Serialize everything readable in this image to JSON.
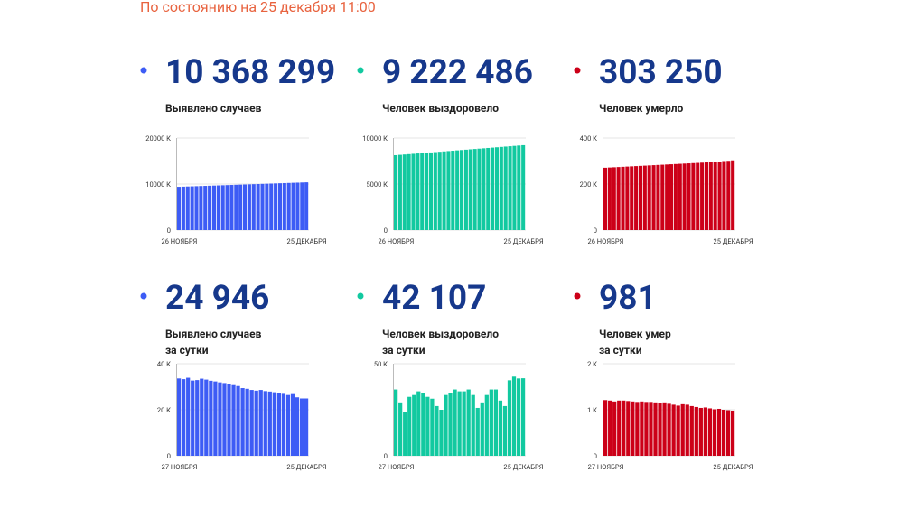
{
  "header": {
    "title": "По состоянию на 25 декабря 11:00"
  },
  "chart_data": [
    {
      "type": "bar",
      "title": "10 368 299",
      "caption": [
        "Выявлено случаев"
      ],
      "color": "#3d5cf5",
      "categories": [
        "26 НОЯБРЯ",
        null,
        null,
        null,
        null,
        null,
        null,
        null,
        null,
        null,
        null,
        null,
        null,
        null,
        null,
        null,
        null,
        null,
        null,
        null,
        null,
        null,
        null,
        null,
        null,
        null,
        null,
        null,
        null,
        "25 ДЕКАБРЯ"
      ],
      "values": [
        9400,
        9433,
        9467,
        9500,
        9534,
        9567,
        9600,
        9634,
        9667,
        9701,
        9734,
        9768,
        9801,
        9834,
        9868,
        9901,
        9935,
        9968,
        10001,
        10035,
        10068,
        10101,
        10135,
        10168,
        10202,
        10235,
        10268,
        10301,
        10335,
        10368
      ],
      "ylim": [
        0,
        20000
      ],
      "yticks": [
        0,
        {
          "value": 10000,
          "label": "10000 К"
        },
        {
          "value": 20000,
          "label": "20000 К"
        }
      ],
      "grid": true
    },
    {
      "type": "bar",
      "title": "9 222 486",
      "caption": [
        "Человек выздоровело"
      ],
      "color": "#12c9a0",
      "categories": [
        "26 НОЯБРЯ",
        null,
        null,
        null,
        null,
        null,
        null,
        null,
        null,
        null,
        null,
        null,
        null,
        null,
        null,
        null,
        null,
        null,
        null,
        null,
        null,
        null,
        null,
        null,
        null,
        null,
        null,
        null,
        null,
        "25 ДЕКАБРЯ"
      ],
      "values": [
        8140,
        8177,
        8215,
        8252,
        8289,
        8327,
        8364,
        8401,
        8439,
        8476,
        8513,
        8551,
        8588,
        8625,
        8663,
        8700,
        8737,
        8775,
        8812,
        8849,
        8886,
        8924,
        8961,
        8998,
        9036,
        9073,
        9110,
        9148,
        9185,
        9222
      ],
      "ylim": [
        0,
        10000
      ],
      "yticks": [
        0,
        {
          "value": 5000,
          "label": "5000 К"
        },
        {
          "value": 10000,
          "label": "10000 К"
        }
      ],
      "grid": true
    },
    {
      "type": "bar",
      "title": "303 250",
      "caption": [
        "Человек умерло"
      ],
      "color": "#cc0018",
      "categories": [
        "26 НОЯБРЯ",
        null,
        null,
        null,
        null,
        null,
        null,
        null,
        null,
        null,
        null,
        null,
        null,
        null,
        null,
        null,
        null,
        null,
        null,
        null,
        null,
        null,
        null,
        null,
        null,
        null,
        null,
        null,
        null,
        "25 ДЕКАБРЯ"
      ],
      "values": [
        271,
        272,
        273,
        274,
        275,
        276,
        277,
        278,
        279,
        280,
        281,
        282,
        283,
        284,
        285,
        286,
        287,
        288,
        289,
        290,
        291,
        292,
        293,
        294,
        295,
        297,
        298,
        300,
        301,
        303
      ],
      "ylim": [
        0,
        400
      ],
      "yticks": [
        0,
        {
          "value": 200,
          "label": "200 К"
        },
        {
          "value": 400,
          "label": "400 К"
        }
      ],
      "grid": true
    },
    {
      "type": "bar",
      "title": "24 946",
      "caption": [
        "Выявлено случаев",
        "за сутки"
      ],
      "color": "#3d5cf5",
      "categories": [
        "27 НОЯБРЯ",
        null,
        null,
        null,
        null,
        null,
        null,
        null,
        null,
        null,
        null,
        null,
        null,
        null,
        null,
        null,
        null,
        null,
        null,
        null,
        null,
        null,
        null,
        null,
        null,
        null,
        null,
        null,
        "25 ДЕКАБРЯ"
      ],
      "values": [
        33.6,
        33.3,
        33.9,
        32.7,
        32.9,
        33.5,
        33.1,
        32.6,
        32.3,
        31.9,
        31.6,
        31.3,
        30.7,
        30.3,
        29.4,
        29.1,
        28.6,
        28.3,
        28.6,
        28.1,
        27.9,
        27.6,
        27.4,
        26.9,
        26.4,
        26.8,
        25.4,
        24.9,
        24.9
      ],
      "ylim": [
        0,
        40
      ],
      "yticks": [
        0,
        {
          "value": 20,
          "label": "20 К"
        },
        {
          "value": 40,
          "label": "40 К"
        }
      ],
      "grid": true
    },
    {
      "type": "bar",
      "title": "42 107",
      "caption": [
        "Человек выздоровело",
        "за сутки"
      ],
      "color": "#12c9a0",
      "categories": [
        "27 НОЯБРЯ",
        null,
        null,
        null,
        null,
        null,
        null,
        null,
        null,
        null,
        null,
        null,
        null,
        null,
        null,
        null,
        null,
        null,
        null,
        null,
        null,
        null,
        null,
        null,
        null,
        null,
        null,
        null,
        "25 ДЕКАБРЯ"
      ],
      "values": [
        36,
        29,
        24,
        32,
        33,
        35,
        34,
        32,
        31,
        27,
        25,
        33,
        34,
        36,
        35,
        35,
        36,
        33,
        26,
        29,
        33,
        36,
        36,
        30,
        27,
        41,
        43,
        42,
        42.1
      ],
      "ylim": [
        0,
        50
      ],
      "yticks": [
        0,
        {
          "value": 50,
          "label": "50 К"
        }
      ],
      "grid": true
    },
    {
      "type": "bar",
      "title": "981",
      "caption": [
        "Человек умер",
        "за сутки"
      ],
      "color": "#cc0018",
      "categories": [
        "27 НОЯБРЯ",
        null,
        null,
        null,
        null,
        null,
        null,
        null,
        null,
        null,
        null,
        null,
        null,
        null,
        null,
        null,
        null,
        null,
        null,
        null,
        null,
        null,
        null,
        null,
        null,
        null,
        null,
        null,
        "25 ДЕКАБРЯ"
      ],
      "values": [
        1.21,
        1.2,
        1.18,
        1.2,
        1.2,
        1.19,
        1.18,
        1.17,
        1.18,
        1.17,
        1.17,
        1.16,
        1.15,
        1.16,
        1.13,
        1.11,
        1.09,
        1.12,
        1.11,
        1.08,
        1.06,
        1.04,
        1.05,
        1.03,
        1.01,
        1.02,
        1.0,
        0.99,
        0.981
      ],
      "ylim": [
        0,
        2
      ],
      "yticks": [
        0,
        {
          "value": 1,
          "label": "1 К"
        },
        {
          "value": 2,
          "label": "2 К"
        }
      ],
      "grid": true
    }
  ]
}
